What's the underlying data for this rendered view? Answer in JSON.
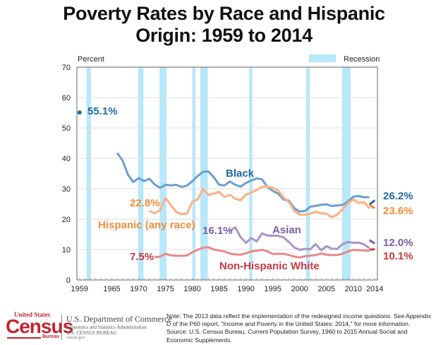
{
  "chart_data": {
    "type": "line",
    "title": "Poverty Rates by Race and Hispanic Origin: 1959 to 2014",
    "title_lines": [
      "Poverty Rates by Race and Hispanic",
      "Origin: 1959 to 2014"
    ],
    "ylabel": "Percent",
    "xlabel": "",
    "ylim": [
      0,
      70
    ],
    "xlim": [
      1959,
      2014
    ],
    "yticks": [
      0,
      10,
      20,
      30,
      40,
      50,
      60,
      70
    ],
    "xtick_labels": [
      "1959",
      "1965",
      "1970",
      "1975",
      "1980",
      "1985",
      "1990",
      "1995",
      "2000",
      "2005",
      "2010",
      "2014"
    ],
    "xticks": [
      1959,
      1965,
      1970,
      1975,
      1980,
      1985,
      1990,
      1995,
      2000,
      2005,
      2010,
      2014
    ],
    "grid": true,
    "legend": {
      "label": "Recession",
      "placement": "top-right"
    },
    "recessions": [
      [
        1960.3,
        1961.1
      ],
      [
        1969.9,
        1970.9
      ],
      [
        1973.9,
        1975.2
      ],
      [
        1980.0,
        1980.6
      ],
      [
        1981.5,
        1982.9
      ],
      [
        1990.6,
        1991.2
      ],
      [
        2001.2,
        2001.9
      ],
      [
        2007.9,
        2009.5
      ]
    ],
    "series": [
      {
        "name": "Black",
        "color": "#6f9ecf",
        "label_color": "#1f6aa5",
        "start_label": "55.1%",
        "end_label": "26.2%",
        "single_point": {
          "x": 1959,
          "y": 55.1
        },
        "x": [
          1966,
          1967,
          1968,
          1969,
          1970,
          1971,
          1972,
          1973,
          1974,
          1975,
          1976,
          1977,
          1978,
          1979,
          1980,
          1981,
          1982,
          1983,
          1984,
          1985,
          1986,
          1987,
          1988,
          1989,
          1990,
          1991,
          1992,
          1993,
          1994,
          1995,
          1996,
          1997,
          1998,
          1999,
          2000,
          2001,
          2002,
          2003,
          2004,
          2005,
          2006,
          2007,
          2008,
          2009,
          2010,
          2011,
          2012,
          2013
        ],
        "values": [
          41.8,
          39.3,
          34.7,
          32.2,
          33.5,
          32.5,
          33.3,
          31.4,
          30.3,
          31.3,
          31.1,
          31.3,
          30.6,
          31.0,
          32.5,
          34.2,
          35.6,
          35.7,
          33.8,
          31.3,
          31.1,
          32.4,
          31.3,
          30.7,
          31.9,
          32.7,
          33.4,
          33.1,
          30.6,
          29.3,
          28.4,
          26.5,
          26.1,
          23.6,
          22.5,
          22.7,
          24.1,
          24.4,
          24.7,
          24.9,
          24.3,
          24.5,
          24.7,
          25.8,
          27.4,
          27.6,
          27.2,
          27.2
        ],
        "end_segment": {
          "x": [
            2013,
            2014
          ],
          "values": [
            24.8,
            26.2
          ]
        }
      },
      {
        "name": "Hispanic (any race)",
        "color": "#fdb083",
        "label_color": "#f58c3c",
        "start_label": "22.8%",
        "end_label": "23.6%",
        "x": [
          1972,
          1973,
          1974,
          1975,
          1976,
          1977,
          1978,
          1979,
          1980,
          1981,
          1982,
          1983,
          1984,
          1985,
          1986,
          1987,
          1988,
          1989,
          1990,
          1991,
          1992,
          1993,
          1994,
          1995,
          1996,
          1997,
          1998,
          1999,
          2000,
          2001,
          2002,
          2003,
          2004,
          2005,
          2006,
          2007,
          2008,
          2009,
          2010,
          2011,
          2012,
          2013
        ],
        "values": [
          22.8,
          21.9,
          23.0,
          26.9,
          24.7,
          22.4,
          21.6,
          21.8,
          25.7,
          26.5,
          29.9,
          28.0,
          28.4,
          29.0,
          27.3,
          28.0,
          26.7,
          26.2,
          28.1,
          28.7,
          29.6,
          30.6,
          30.7,
          30.3,
          29.4,
          27.1,
          25.6,
          22.7,
          21.5,
          21.4,
          21.8,
          22.5,
          21.9,
          21.8,
          20.6,
          21.5,
          23.2,
          25.3,
          26.5,
          25.3,
          25.6,
          23.5
        ],
        "end_segment": {
          "x": [
            2013,
            2014
          ],
          "values": [
            24.7,
            23.6
          ]
        }
      },
      {
        "name": "Asian",
        "color": "#a995c8",
        "label_color": "#7b5ea7",
        "start_label": "16.1%",
        "end_label": "12.0%",
        "x": [
          1987,
          1988,
          1989,
          1990,
          1991,
          1992,
          1993,
          1994,
          1995,
          1996,
          1997,
          1998,
          1999,
          2000,
          2001,
          2002,
          2003,
          2004,
          2005,
          2006,
          2007,
          2008,
          2009,
          2010,
          2011,
          2012,
          2013
        ],
        "values": [
          16.1,
          17.3,
          14.1,
          12.2,
          13.8,
          12.7,
          15.3,
          14.6,
          14.6,
          14.5,
          14.0,
          12.5,
          10.7,
          9.9,
          10.2,
          10.1,
          11.8,
          9.8,
          11.1,
          10.3,
          10.2,
          11.8,
          12.5,
          12.2,
          12.3,
          11.7,
          10.5
        ],
        "end_segment": {
          "x": [
            2013,
            2014
          ],
          "values": [
            13.1,
            12.0
          ]
        }
      },
      {
        "name": "Non-Hispanic White",
        "color": "#e88a8a",
        "label_color": "#c9383f",
        "start_label": "7.5%",
        "end_label": "10.1%",
        "x": [
          1973,
          1974,
          1975,
          1976,
          1977,
          1978,
          1979,
          1980,
          1981,
          1982,
          1983,
          1984,
          1985,
          1986,
          1987,
          1988,
          1989,
          1990,
          1991,
          1992,
          1993,
          1994,
          1995,
          1996,
          1997,
          1998,
          1999,
          2000,
          2001,
          2002,
          2003,
          2004,
          2005,
          2006,
          2007,
          2008,
          2009,
          2010,
          2011,
          2012,
          2013
        ],
        "values": [
          7.5,
          7.7,
          8.6,
          8.1,
          8.0,
          7.9,
          8.1,
          9.1,
          9.9,
          10.6,
          10.8,
          10.0,
          9.7,
          9.4,
          8.7,
          8.4,
          8.3,
          8.8,
          9.4,
          9.6,
          9.9,
          9.4,
          8.5,
          8.6,
          8.6,
          8.2,
          7.7,
          7.4,
          7.8,
          8.0,
          8.2,
          8.7,
          8.3,
          8.2,
          8.2,
          8.6,
          9.4,
          9.9,
          9.8,
          9.7,
          9.6
        ],
        "end_segment": {
          "x": [
            2013,
            2014
          ],
          "values": [
            10.0,
            10.1
          ]
        }
      }
    ]
  },
  "footer": {
    "logo": {
      "top": "United States",
      "main": "Census",
      "bureau": "Bureau",
      "dept": "U.S. Department of Commerce",
      "admin": "Economics and Statistics Administration",
      "agency": "U.S. CENSUS BUREAU",
      "site": "census.gov"
    },
    "note_lines": [
      "Note: The 2013 data reflect the implementation of the redesigned income questions. See Appendix",
      "D of the P60 report, \"Income and Poverty in the United States:  2014,\" for more information.",
      "Source: U.S. Census Bureau, Current Population Survey, 1960 to 2015 Annual Social and",
      "Economic Supplements."
    ]
  },
  "colors": {
    "recession": "#b7e8fb",
    "grid": "#dddddd",
    "axis": "#666666"
  }
}
